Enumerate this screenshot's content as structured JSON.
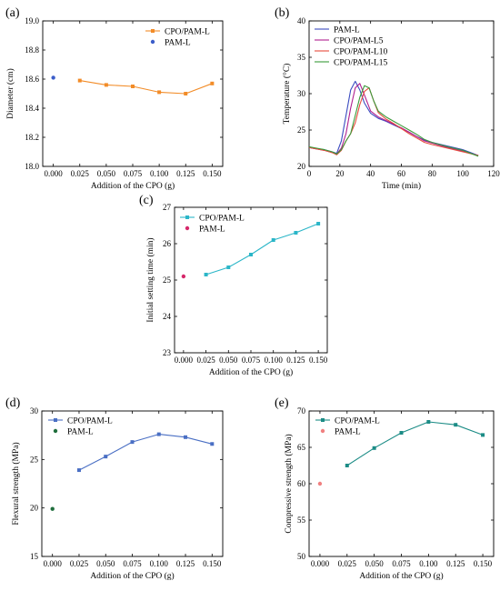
{
  "chart_data": [
    {
      "panel": "(a)",
      "type": "line",
      "xlabel": "Addition of the CPO (g)",
      "ylabel": "Diameter (cm)",
      "xlim": [
        -0.01,
        0.16
      ],
      "ylim": [
        18.0,
        19.0
      ],
      "xticks": [
        "0.000",
        "0.025",
        "0.050",
        "0.075",
        "0.100",
        "0.125",
        "0.150"
      ],
      "yticks": [
        "18.0",
        "18.2",
        "18.4",
        "18.6",
        "18.8",
        "19.0"
      ],
      "legend_position": "top-right",
      "series": [
        {
          "name": "CPO/PAM-L",
          "kind": "line",
          "marker": "square",
          "color": "#F28C28",
          "x": [
            0.025,
            0.05,
            0.075,
            0.1,
            0.125,
            0.15
          ],
          "y": [
            18.59,
            18.56,
            18.55,
            18.51,
            18.5,
            18.57
          ]
        },
        {
          "name": "PAM-L",
          "kind": "scatter",
          "marker": "circle",
          "color": "#3B5DC9",
          "x": [
            0.0
          ],
          "y": [
            18.61
          ]
        }
      ]
    },
    {
      "panel": "(b)",
      "type": "line",
      "xlabel": "Time (min)",
      "ylabel": "Temperature (°C)",
      "xlim": [
        0,
        120
      ],
      "ylim": [
        20,
        40
      ],
      "xticks": [
        "0",
        "20",
        "40",
        "60",
        "80",
        "100",
        "120"
      ],
      "yticks": [
        "20",
        "25",
        "30",
        "35",
        "40"
      ],
      "legend_position": "top-left",
      "series": [
        {
          "name": "PAM-L",
          "color": "#3B4CC0",
          "x": [
            0,
            5,
            10,
            15,
            18,
            21,
            24,
            27,
            30,
            33,
            36,
            40,
            45,
            50,
            55,
            60,
            65,
            70,
            75,
            80,
            90,
            100,
            105,
            110
          ],
          "y": [
            22.6,
            22.4,
            22.3,
            22.0,
            21.8,
            23.5,
            27.0,
            30.5,
            31.7,
            30.5,
            28.7,
            27.3,
            26.6,
            26.2,
            25.7,
            25.2,
            24.7,
            24.1,
            23.6,
            23.3,
            22.8,
            22.3,
            21.9,
            21.5
          ]
        },
        {
          "name": "CPO/PAM-L5",
          "color": "#B0208F",
          "x": [
            0,
            5,
            10,
            15,
            18,
            21,
            24,
            27,
            30,
            33,
            36,
            40,
            45,
            50,
            55,
            60,
            65,
            70,
            75,
            80,
            90,
            100,
            105,
            110
          ],
          "y": [
            22.6,
            22.4,
            22.2,
            21.9,
            21.7,
            22.5,
            24.5,
            28.0,
            30.8,
            31.4,
            29.8,
            27.6,
            26.8,
            26.3,
            25.8,
            25.3,
            24.7,
            24.1,
            23.5,
            23.2,
            22.6,
            22.1,
            21.8,
            21.5
          ]
        },
        {
          "name": "CPO/PAM-L10",
          "color": "#E74C3C",
          "x": [
            0,
            5,
            10,
            15,
            18,
            21,
            24,
            27,
            30,
            33,
            36,
            39,
            42,
            45,
            50,
            55,
            60,
            65,
            70,
            75,
            80,
            90,
            100,
            110
          ],
          "y": [
            22.6,
            22.4,
            22.2,
            21.9,
            21.6,
            22.2,
            23.5,
            24.5,
            26.0,
            28.5,
            30.3,
            30.8,
            29.0,
            27.4,
            26.5,
            25.9,
            25.2,
            24.5,
            23.9,
            23.3,
            23.0,
            22.5,
            22.0,
            21.5
          ]
        },
        {
          "name": "CPO/PAM-L15",
          "color": "#3A9A3A",
          "x": [
            0,
            5,
            10,
            15,
            18,
            21,
            24,
            27,
            30,
            33,
            36,
            39,
            42,
            45,
            50,
            55,
            60,
            65,
            70,
            75,
            80,
            90,
            100,
            110
          ],
          "y": [
            22.7,
            22.5,
            22.3,
            22.0,
            21.7,
            22.3,
            23.5,
            24.5,
            27.0,
            29.5,
            31.1,
            30.8,
            29.0,
            27.6,
            26.8,
            26.2,
            25.6,
            25.0,
            24.4,
            23.7,
            23.3,
            22.7,
            22.2,
            21.4
          ]
        }
      ]
    },
    {
      "panel": "(c)",
      "type": "line",
      "xlabel": "Addition of the CPO (g)",
      "ylabel": "Initial setting time (min)",
      "xlim": [
        -0.01,
        0.16
      ],
      "ylim": [
        23,
        27
      ],
      "xticks": [
        "0.000",
        "0.025",
        "0.050",
        "0.075",
        "0.100",
        "0.125",
        "0.150"
      ],
      "yticks": [
        "23",
        "24",
        "25",
        "26",
        "27"
      ],
      "legend_position": "top-left",
      "series": [
        {
          "name": "CPO/PAM-L",
          "kind": "line",
          "marker": "square",
          "color": "#2BB6C8",
          "x": [
            0.025,
            0.05,
            0.075,
            0.1,
            0.125,
            0.15
          ],
          "y": [
            25.15,
            25.35,
            25.7,
            26.1,
            26.3,
            26.55
          ]
        },
        {
          "name": "PAM-L",
          "kind": "scatter",
          "marker": "circle",
          "color": "#D6286A",
          "x": [
            0.0
          ],
          "y": [
            25.1
          ]
        }
      ]
    },
    {
      "panel": "(d)",
      "type": "line",
      "xlabel": "Addition of the CPO (g)",
      "ylabel": "Flexural strength (MPa)",
      "xlim": [
        -0.01,
        0.16
      ],
      "ylim": [
        15,
        30
      ],
      "xticks": [
        "0.000",
        "0.025",
        "0.050",
        "0.075",
        "0.100",
        "0.125",
        "0.150"
      ],
      "yticks": [
        "15",
        "20",
        "25",
        "30"
      ],
      "legend_position": "top-left",
      "series": [
        {
          "name": "CPO/PAM-L",
          "kind": "line",
          "marker": "square",
          "color": "#4A6FC4",
          "x": [
            0.025,
            0.05,
            0.075,
            0.1,
            0.125,
            0.15
          ],
          "y": [
            23.9,
            25.3,
            26.8,
            27.6,
            27.3,
            26.6
          ]
        },
        {
          "name": "PAM-L",
          "kind": "scatter",
          "marker": "circle",
          "color": "#1F6E3C",
          "x": [
            0.0
          ],
          "y": [
            19.9
          ]
        }
      ]
    },
    {
      "panel": "(e)",
      "type": "line",
      "xlabel": "Addition of the CPO (g)",
      "ylabel": "Compressive strength (MPa)",
      "xlim": [
        -0.01,
        0.16
      ],
      "ylim": [
        50,
        70
      ],
      "xticks": [
        "0.000",
        "0.025",
        "0.050",
        "0.075",
        "0.100",
        "0.125",
        "0.150"
      ],
      "yticks": [
        "50",
        "55",
        "60",
        "65",
        "70"
      ],
      "legend_position": "top-left",
      "series": [
        {
          "name": "CPO/PAM-L",
          "kind": "line",
          "marker": "square",
          "color": "#1C8C86",
          "x": [
            0.025,
            0.05,
            0.075,
            0.1,
            0.125,
            0.15
          ],
          "y": [
            62.5,
            64.9,
            67.0,
            68.5,
            68.1,
            66.7
          ]
        },
        {
          "name": "PAM-L",
          "kind": "scatter",
          "marker": "circle",
          "color": "#F08080",
          "x": [
            0.0
          ],
          "y": [
            60.0
          ]
        }
      ]
    }
  ]
}
